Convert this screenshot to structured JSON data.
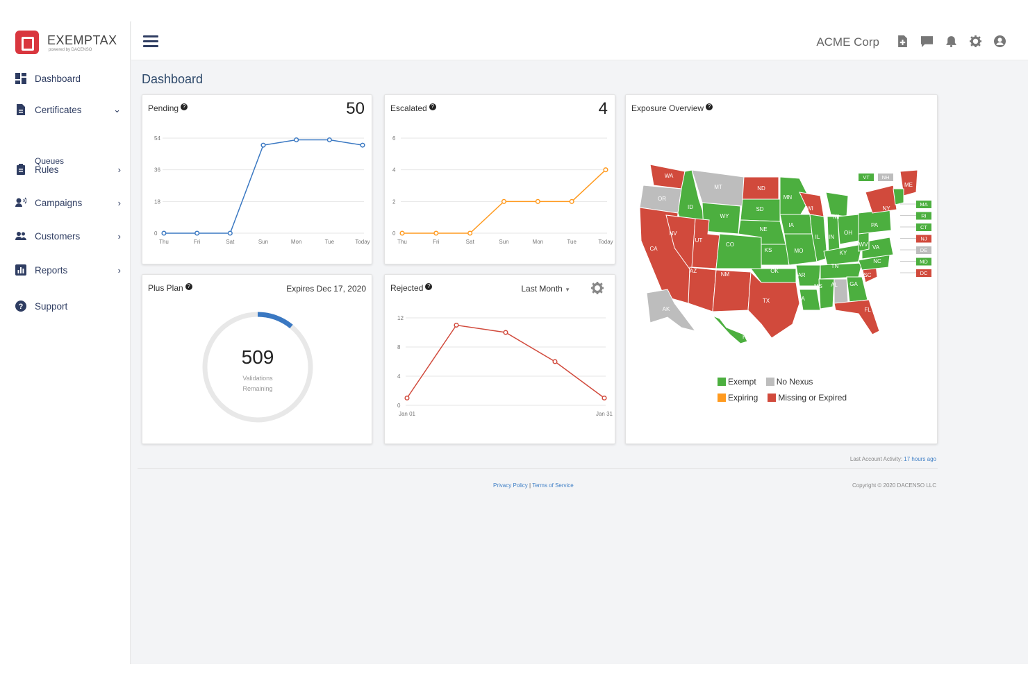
{
  "app": {
    "brand": "EXEMPTAX",
    "brand_sub": "powered by DACENSO"
  },
  "colors": {
    "navy": "#2f3d62",
    "blue": "#3a78c2",
    "orange": "#ff9a1f",
    "red": "#d14a3c",
    "green": "#4caf3f",
    "grey": "#bdbdbd"
  },
  "header": {
    "company": "ACME Corp",
    "icons": [
      "file-plus-icon",
      "chat-icon",
      "bell-icon",
      "gear-icon",
      "user-circle-icon"
    ]
  },
  "sidebar": {
    "items": [
      {
        "label": "Dashboard",
        "icon": "dashboard-icon"
      },
      {
        "label": "Certificates",
        "icon": "document-icon",
        "chevron": "⌄"
      },
      {
        "label": "Queues"
      },
      {
        "label": "Rules",
        "icon": "clipboard-icon",
        "chevron": "›"
      },
      {
        "label": "Campaigns",
        "icon": "megaphone-icon",
        "chevron": "›"
      },
      {
        "label": "Customers",
        "icon": "people-icon",
        "chevron": "›"
      },
      {
        "label": "Reports",
        "icon": "bar-chart-icon",
        "chevron": "›"
      },
      {
        "label": "Support",
        "icon": "help-icon"
      }
    ]
  },
  "page": {
    "title": "Dashboard"
  },
  "cards": {
    "pending": {
      "title": "Pending",
      "count": "50"
    },
    "escalated": {
      "title": "Escalated",
      "count": "4"
    },
    "exposure": {
      "title": "Exposure Overview"
    },
    "plan": {
      "title": "Plus Plan",
      "expires": "Expires Dec 17, 2020",
      "value": "509",
      "line1": "Validations",
      "line2": "Remaining",
      "used_fraction": 0.11
    },
    "rejected": {
      "title": "Rejected",
      "filter": "Last Month"
    }
  },
  "map": {
    "legend": [
      {
        "label": "Exempt",
        "color": "#4caf3f"
      },
      {
        "label": "No Nexus",
        "color": "#bdbdbd"
      },
      {
        "label": "Expiring",
        "color": "#ff9a1f"
      },
      {
        "label": "Missing or Expired",
        "color": "#d14a3c"
      }
    ],
    "callouts": [
      {
        "label": "VT",
        "status": "exempt"
      },
      {
        "label": "NH",
        "status": "nonexus"
      },
      {
        "label": "MA",
        "status": "exempt"
      },
      {
        "label": "RI",
        "status": "exempt"
      },
      {
        "label": "CT",
        "status": "exempt"
      },
      {
        "label": "NJ",
        "status": "missing"
      },
      {
        "label": "DE",
        "status": "nonexus"
      },
      {
        "label": "MD",
        "status": "exempt"
      },
      {
        "label": "DC",
        "status": "missing"
      }
    ],
    "states": [
      "WA",
      "OR",
      "ID",
      "MT",
      "ND",
      "MN",
      "WI",
      "MI",
      "ME",
      "NY",
      "PA",
      "OH",
      "IN",
      "IL",
      "IA",
      "SD",
      "WY",
      "NE",
      "NV",
      "CA",
      "UT",
      "CO",
      "KS",
      "MO",
      "KY",
      "WV",
      "VA",
      "NC",
      "TN",
      "SC",
      "GA",
      "AL",
      "MS",
      "AR",
      "LA",
      "OK",
      "TX",
      "NM",
      "AZ",
      "FL",
      "AK",
      "HI"
    ]
  },
  "footer": {
    "activity_label": "Last Account Activity:",
    "activity_value": "17 hours ago",
    "privacy": "Privacy Policy",
    "sep": "|",
    "terms": "Terms of Service",
    "copyright": "Copyright © 2020 DACENSO LLC"
  },
  "chart_data": [
    {
      "id": "pending",
      "type": "line",
      "title": "Pending",
      "categories": [
        "Thu",
        "Fri",
        "Sat",
        "Sun",
        "Mon",
        "Tue",
        "Today"
      ],
      "values": [
        0,
        0,
        0,
        50,
        53,
        53,
        50
      ],
      "ylim": [
        0,
        54
      ],
      "yticks": [
        0,
        18,
        36,
        54
      ]
    },
    {
      "id": "escalated",
      "type": "line",
      "title": "Escalated",
      "categories": [
        "Thu",
        "Fri",
        "Sat",
        "Sun",
        "Mon",
        "Tue",
        "Today"
      ],
      "values": [
        0,
        0,
        0,
        2,
        2,
        2,
        4
      ],
      "ylim": [
        0,
        6
      ],
      "yticks": [
        0,
        2,
        4,
        6
      ]
    },
    {
      "id": "rejected",
      "type": "line",
      "title": "Rejected",
      "categories": [
        "Jan 01",
        "",
        "",
        "",
        "Jan 31"
      ],
      "values": [
        1,
        11,
        10,
        6,
        1
      ],
      "ylim": [
        0,
        12
      ],
      "yticks": [
        0,
        4,
        8,
        12
      ]
    }
  ]
}
